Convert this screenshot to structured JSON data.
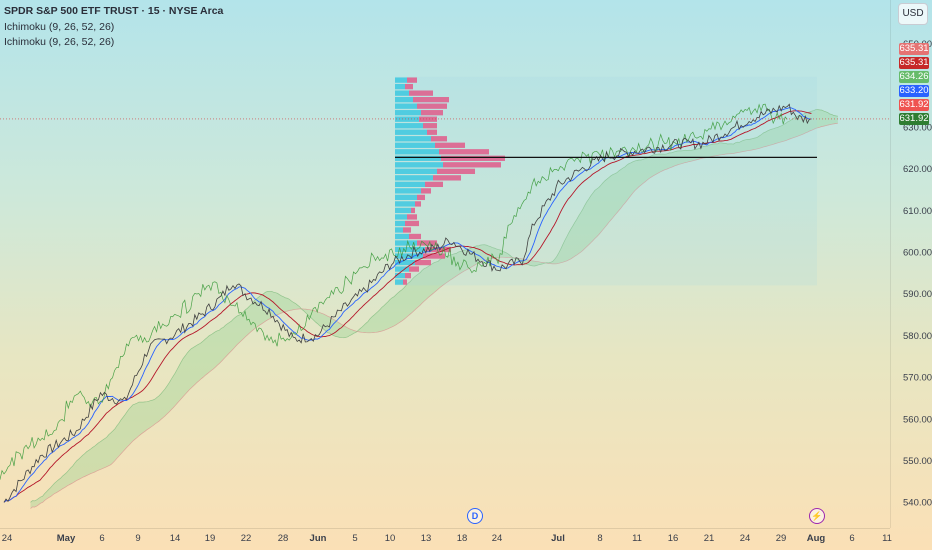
{
  "header": {
    "title": "SPDR S&P 500 ETF TRUST · 15 · NYSE Arca",
    "indicator_1": "Ichimoku (9, 26, 52, 26)",
    "indicator_2": "Ichimoku (9, 26, 52, 26)"
  },
  "currency_button": "USD",
  "events": {
    "dividend": "D",
    "split": "⚡"
  },
  "colors": {
    "price_line_green": "#3a9a3a",
    "price_line_red": "#d23c3c",
    "tenkan_blue": "#2962ff",
    "kijun_red": "#b5172a",
    "cloud_green": "#8fd18f",
    "volume_profile_cyan": "#44c9e0",
    "volume_profile_pink": "#e05a8a",
    "badge_pink": "#e57373",
    "badge_darkred": "#c62828",
    "badge_green": "#66bb6a",
    "badge_blue": "#2962ff",
    "badge_red": "#ef5350",
    "badge_darkgreen": "#2e7d32"
  },
  "chart_data": {
    "type": "line",
    "title": "SPDR S&P 500 ETF TRUST · 15 · NYSE Arca",
    "xlabel": "",
    "ylabel": "",
    "y_scale": "linear",
    "ylim": [
      535,
      650
    ],
    "y_ticks": [
      "650.00",
      "630.00",
      "620.00",
      "610.00",
      "600.00",
      "590.00",
      "580.00",
      "570.00",
      "560.00",
      "550.00",
      "540.00"
    ],
    "x_tick_labels": [
      "24",
      "May",
      "6",
      "9",
      "14",
      "19",
      "22",
      "28",
      "Jun",
      "5",
      "10",
      "13",
      "18",
      "24",
      "Jul",
      "8",
      "11",
      "16",
      "21",
      "24",
      "29",
      "Aug",
      "6",
      "11"
    ],
    "price_path": [
      [
        0,
        540
      ],
      [
        3,
        551
      ],
      [
        6,
        557
      ],
      [
        8,
        566
      ],
      [
        10,
        564
      ],
      [
        12,
        577
      ],
      [
        14,
        580
      ],
      [
        16,
        584
      ],
      [
        18,
        589
      ],
      [
        19,
        593
      ],
      [
        20,
        590
      ],
      [
        22,
        586
      ],
      [
        24,
        579
      ],
      [
        26,
        580
      ],
      [
        28,
        586
      ],
      [
        30,
        591
      ],
      [
        31,
        594
      ],
      [
        32,
        597
      ],
      [
        34,
        600
      ],
      [
        36,
        601
      ],
      [
        37,
        603
      ],
      [
        38,
        601
      ],
      [
        39,
        599
      ],
      [
        41,
        596
      ],
      [
        43,
        598
      ],
      [
        44,
        607
      ],
      [
        46,
        616
      ],
      [
        48,
        620
      ],
      [
        50,
        623
      ],
      [
        52,
        624
      ],
      [
        54,
        625
      ],
      [
        56,
        626
      ],
      [
        58,
        626
      ],
      [
        60,
        629
      ],
      [
        62,
        632
      ],
      [
        64,
        634
      ],
      [
        65,
        635
      ],
      [
        66,
        632
      ],
      [
        67,
        631.9
      ]
    ],
    "series": [
      {
        "name": "SPY",
        "values": "price_path"
      }
    ],
    "horizontal_line": 622.7,
    "price_badges": [
      "635.31",
      "635.31",
      "634.26",
      "633.20",
      "631.92",
      "631.92"
    ],
    "events": [
      {
        "type": "dividend",
        "label": "D",
        "x_label": "18"
      },
      {
        "type": "split",
        "label": "⚡",
        "x_label": "Aug"
      }
    ],
    "grid": false
  }
}
